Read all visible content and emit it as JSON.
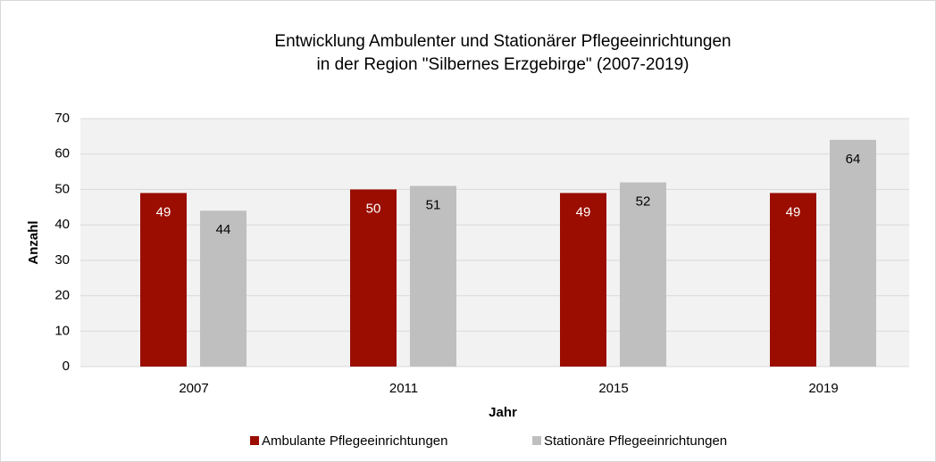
{
  "chart_data": {
    "type": "bar",
    "title": [
      "Entwicklung Ambulenter und Stationärer Pflegeeinrichtungen",
      "in der Region \"Silbernes Erzgebirge\" (2007-2019)"
    ],
    "x_label": "Jahr",
    "y_label": "Anzahl",
    "categories": [
      "2007",
      "2011",
      "2015",
      "2019"
    ],
    "series": [
      {
        "name": "Ambulante Pflegeeinrichtungen",
        "color": "#9b0d00",
        "values": [
          49,
          50,
          49,
          49
        ]
      },
      {
        "name": "Stationäre Pflegeeinrichtungen",
        "color": "#bfbfbf",
        "values": [
          44,
          51,
          52,
          64
        ]
      }
    ],
    "ylim": [
      0,
      70
    ],
    "yticks": [
      0,
      10,
      20,
      30,
      40,
      50,
      60,
      70
    ],
    "grid": true,
    "legend": "bottom"
  }
}
